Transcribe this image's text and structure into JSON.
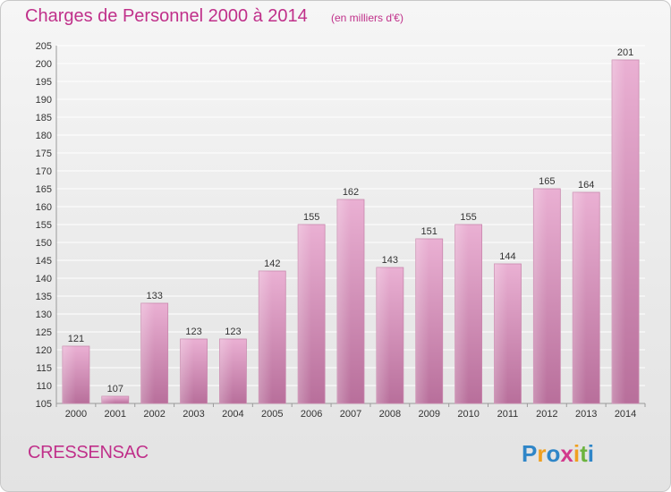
{
  "header": {
    "title": "Charges de Personnel 2000 à 2014",
    "subtitle": "(en milliers d'€)"
  },
  "footer": {
    "commune": "CRESSENSAC",
    "logo_text": "Proxiti"
  },
  "colors": {
    "title": "#c0308a",
    "bar_light": "#eab0d3",
    "bar_dark": "#b86f9b",
    "grid": "#ffffff"
  },
  "chart_data": {
    "type": "bar",
    "title": "Charges de Personnel 2000 à 2014",
    "subtitle": "(en milliers d'€)",
    "categories": [
      "2000",
      "2001",
      "2002",
      "2003",
      "2004",
      "2005",
      "2006",
      "2007",
      "2008",
      "2009",
      "2010",
      "2011",
      "2012",
      "2013",
      "2014"
    ],
    "values": [
      121,
      107,
      133,
      123,
      123,
      142,
      155,
      162,
      143,
      151,
      155,
      144,
      165,
      164,
      201
    ],
    "ylim": [
      105,
      205
    ],
    "yticks": [
      105,
      110,
      115,
      120,
      125,
      130,
      135,
      140,
      145,
      150,
      155,
      160,
      165,
      170,
      175,
      180,
      185,
      190,
      195,
      200,
      205
    ],
    "grid": true,
    "data_labels": true,
    "xlabel": "",
    "ylabel": ""
  }
}
